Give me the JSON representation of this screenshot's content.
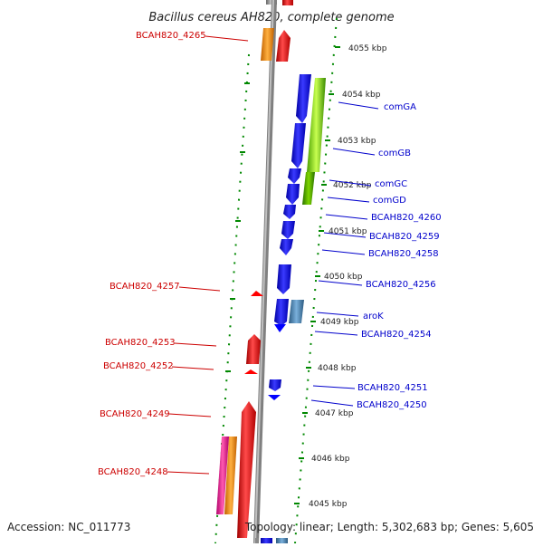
{
  "title": "Bacillus cereus AH820, complete genome",
  "footer": {
    "accession": "Accession: NC_011773",
    "summary": "Topology: linear; Length: 5,302,683 bp; Genes: 5,605"
  },
  "axis": {
    "ticks": [
      "4055 kbp",
      "4054 kbp",
      "4053 kbp",
      "4052 kbp",
      "4051 kbp",
      "4050 kbp",
      "4049 kbp",
      "4048 kbp",
      "4047 kbp",
      "4046 kbp",
      "4045 kbp"
    ]
  },
  "genes_left": [
    {
      "label": "BCAH820_4265",
      "color": "#cc0000"
    },
    {
      "label": "BCAH820_4257",
      "color": "#cc0000"
    },
    {
      "label": "BCAH820_4253",
      "color": "#cc0000"
    },
    {
      "label": "BCAH820_4252",
      "color": "#cc0000"
    },
    {
      "label": "BCAH820_4249",
      "color": "#cc0000"
    },
    {
      "label": "BCAH820_4248",
      "color": "#cc0000"
    }
  ],
  "genes_right": [
    {
      "label": "comGA"
    },
    {
      "label": "comGB"
    },
    {
      "label": "comGC"
    },
    {
      "label": "comGD"
    },
    {
      "label": "BCAH820_4260"
    },
    {
      "label": "BCAH820_4259"
    },
    {
      "label": "BCAH820_4258"
    },
    {
      "label": "BCAH820_4256"
    },
    {
      "label": "aroK"
    },
    {
      "label": "BCAH820_4254"
    },
    {
      "label": "BCAH820_4251"
    },
    {
      "label": "BCAH820_4250"
    }
  ],
  "colors": {
    "forward": "#ff0000",
    "reverse": "#0000ff",
    "orange": "#ff8c00",
    "magenta": "#ff1493",
    "green": "#7fd600",
    "steelblue": "#4682b4",
    "backbone": "#888888",
    "ticks": "#008800"
  }
}
